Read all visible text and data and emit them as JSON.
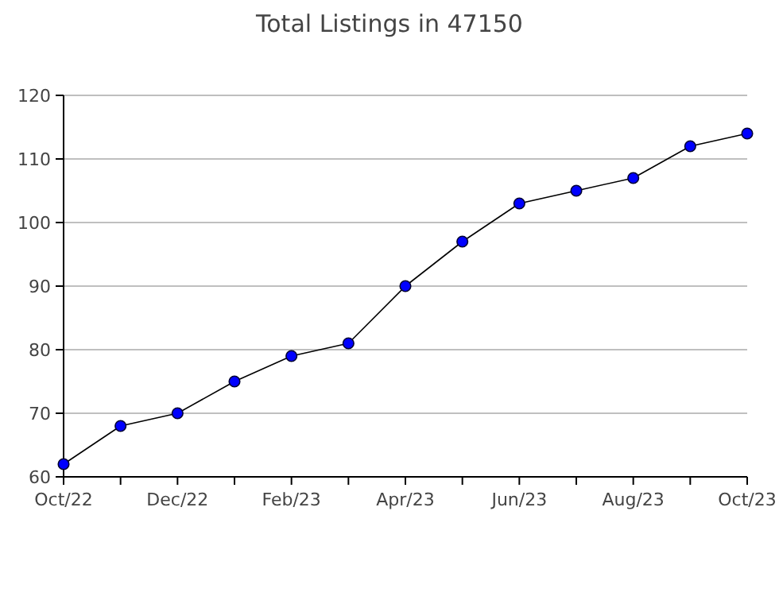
{
  "chart_data": {
    "type": "line",
    "title": "Total Listings in 47150",
    "categories": [
      "Oct/22",
      null,
      "Dec/22",
      null,
      "Feb/23",
      null,
      "Apr/23",
      null,
      "Jun/23",
      null,
      "Aug/23",
      null,
      "Oct/23"
    ],
    "series": [
      {
        "color": "#0000ff",
        "values": [
          62,
          68,
          70,
          75,
          79,
          81,
          90,
          97,
          103,
          105,
          107,
          112,
          114
        ]
      }
    ],
    "ylim": [
      60,
      120
    ],
    "yticks": [
      60,
      70,
      80,
      90,
      100,
      110,
      120
    ],
    "grid": "y",
    "marker": "circle",
    "line_style": "solid"
  }
}
